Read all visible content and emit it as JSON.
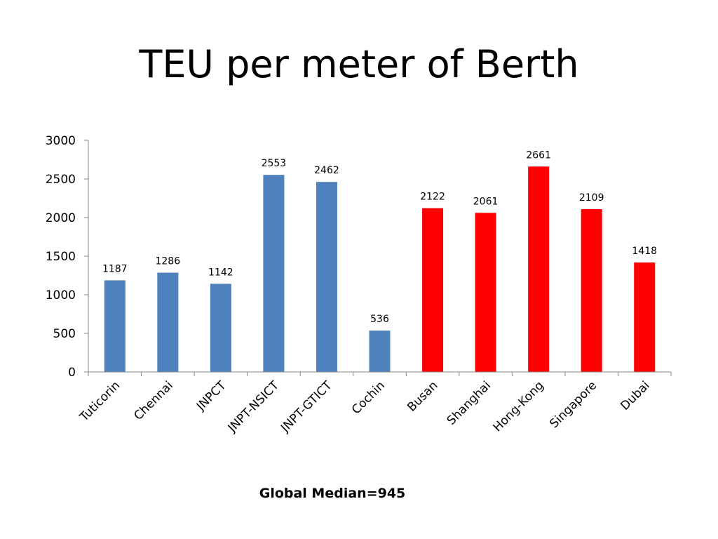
{
  "slide": {
    "title": "TEU per meter of Berth",
    "footnote": "Global Median=945"
  },
  "colors": {
    "indian_ports": "#4F81BD",
    "global_ports": "#FF0000",
    "axis": "#868686"
  },
  "chart_data": {
    "type": "bar",
    "title": "TEU per meter of Berth",
    "xlabel": "",
    "ylabel": "",
    "ylim": [
      0,
      3000
    ],
    "yticks": [
      0,
      500,
      1000,
      1500,
      2000,
      2500,
      3000
    ],
    "grid": false,
    "legend": "none",
    "categories": [
      "Tuticorin",
      "Chennai",
      "JNPCT",
      "JNPT-NSICT",
      "JNPT-GTICT",
      "Cochin",
      "Busan",
      "Shanghai",
      "Hong-Kong",
      "Singapore",
      "Dubai"
    ],
    "values": [
      1187,
      1286,
      1142,
      2553,
      2462,
      536,
      2122,
      2061,
      2661,
      2109,
      1418
    ],
    "bar_colors": [
      "#4F81BD",
      "#4F81BD",
      "#4F81BD",
      "#4F81BD",
      "#4F81BD",
      "#4F81BD",
      "#FF0000",
      "#FF0000",
      "#FF0000",
      "#FF0000",
      "#FF0000"
    ],
    "data_labels": true
  }
}
